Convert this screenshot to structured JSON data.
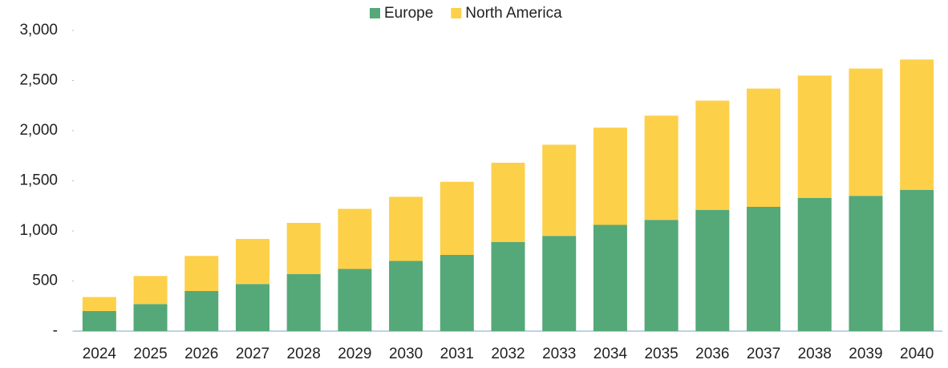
{
  "chart_data": {
    "type": "stacked_bar",
    "categories": [
      "2024",
      "2025",
      "2026",
      "2027",
      "2028",
      "2029",
      "2030",
      "2031",
      "2032",
      "2033",
      "2034",
      "2035",
      "2036",
      "2037",
      "2038",
      "2039",
      "2040"
    ],
    "series": [
      {
        "name": "Europe",
        "color": "#55a878",
        "values": [
          200,
          270,
          400,
          470,
          570,
          620,
          700,
          760,
          890,
          950,
          1060,
          1110,
          1210,
          1240,
          1330,
          1350,
          1410
        ]
      },
      {
        "name": "North America",
        "color": "#fdd04a",
        "values": [
          140,
          280,
          350,
          450,
          510,
          600,
          640,
          730,
          790,
          910,
          970,
          1040,
          1090,
          1180,
          1220,
          1270,
          1300
        ]
      }
    ],
    "ylim": [
      0,
      3000
    ],
    "yticks": [
      {
        "value": 0,
        "label": "-"
      },
      500,
      {
        "value": 1000,
        "label": "1,000"
      },
      {
        "value": 1500,
        "label": "1,500"
      },
      {
        "value": 2000,
        "label": "2,000"
      },
      {
        "value": 2500,
        "label": "2,500"
      },
      {
        "value": 3000,
        "label": "3,000"
      }
    ],
    "grid": false,
    "legend": "top"
  }
}
